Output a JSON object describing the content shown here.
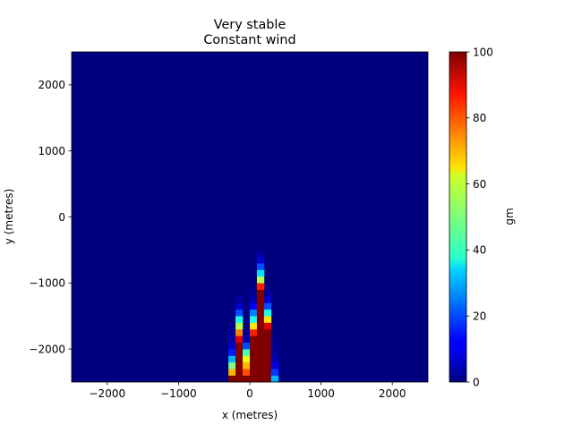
{
  "chart_data": {
    "type": "heatmap",
    "title": "Very stable",
    "subtitle": "Constant wind",
    "xlabel": "x (metres)",
    "ylabel": "y (metres)",
    "xlim": [
      -2500,
      2500
    ],
    "ylim": [
      -2500,
      2500
    ],
    "grid": false,
    "x_ticks": [
      -2000,
      -1000,
      0,
      1000,
      2000
    ],
    "x_tick_labels": [
      "−2000",
      "−1000",
      "0",
      "1000",
      "2000"
    ],
    "y_ticks": [
      2000,
      1000,
      0,
      -1000,
      -2000
    ],
    "y_tick_labels": [
      "2000",
      "1000",
      "0",
      "−1000",
      "−2000"
    ],
    "cell_size": 100,
    "background_value": 0,
    "colorbar": {
      "label": "gm",
      "min": 0,
      "max": 100,
      "ticks": [
        0,
        20,
        40,
        60,
        80,
        100
      ],
      "tick_labels": [
        "0",
        "20",
        "40",
        "60",
        "80",
        "100"
      ],
      "colormap": "jet"
    },
    "columns": [
      {
        "x_center": -250,
        "cells": [
          [
            -2450,
            100
          ],
          [
            -2350,
            70
          ],
          [
            -2250,
            50
          ],
          [
            -2150,
            30
          ],
          [
            -2050,
            15
          ],
          [
            -1950,
            8
          ],
          [
            -1850,
            4
          ],
          [
            -1750,
            2
          ],
          [
            -1650,
            1
          ]
        ]
      },
      {
        "x_center": -150,
        "cells": [
          [
            -2450,
            100
          ],
          [
            -2350,
            100
          ],
          [
            -2250,
            100
          ],
          [
            -2150,
            100
          ],
          [
            -2050,
            100
          ],
          [
            -1950,
            100
          ],
          [
            -1850,
            90
          ],
          [
            -1750,
            75
          ],
          [
            -1650,
            55
          ],
          [
            -1550,
            40
          ],
          [
            -1450,
            20
          ],
          [
            -1350,
            8
          ],
          [
            -1250,
            3
          ]
        ]
      },
      {
        "x_center": -50,
        "cells": [
          [
            -2450,
            100
          ],
          [
            -2350,
            80
          ],
          [
            -2250,
            70
          ],
          [
            -2150,
            60
          ],
          [
            -2050,
            45
          ],
          [
            -1950,
            20
          ],
          [
            -1850,
            5
          ],
          [
            -1750,
            2
          ]
        ]
      },
      {
        "x_center": 50,
        "cells": [
          [
            -2450,
            100
          ],
          [
            -2350,
            100
          ],
          [
            -2250,
            100
          ],
          [
            -2150,
            100
          ],
          [
            -2050,
            100
          ],
          [
            -1950,
            100
          ],
          [
            -1850,
            100
          ],
          [
            -1750,
            85
          ],
          [
            -1650,
            65
          ],
          [
            -1550,
            40
          ],
          [
            -1450,
            25
          ],
          [
            -1350,
            12
          ],
          [
            -1250,
            5
          ],
          [
            -1150,
            2
          ]
        ]
      },
      {
        "x_center": 150,
        "cells": [
          [
            -2450,
            100
          ],
          [
            -2350,
            100
          ],
          [
            -2250,
            100
          ],
          [
            -2150,
            100
          ],
          [
            -2050,
            100
          ],
          [
            -1950,
            100
          ],
          [
            -1850,
            100
          ],
          [
            -1750,
            100
          ],
          [
            -1650,
            100
          ],
          [
            -1550,
            100
          ],
          [
            -1450,
            100
          ],
          [
            -1350,
            100
          ],
          [
            -1250,
            100
          ],
          [
            -1150,
            100
          ],
          [
            -1050,
            85
          ],
          [
            -950,
            55
          ],
          [
            -850,
            35
          ],
          [
            -750,
            20
          ],
          [
            -650,
            8
          ],
          [
            -550,
            3
          ]
        ]
      },
      {
        "x_center": 250,
        "cells": [
          [
            -2450,
            100
          ],
          [
            -2350,
            100
          ],
          [
            -2250,
            100
          ],
          [
            -2150,
            100
          ],
          [
            -2050,
            100
          ],
          [
            -1950,
            100
          ],
          [
            -1850,
            100
          ],
          [
            -1750,
            100
          ],
          [
            -1650,
            90
          ],
          [
            -1550,
            65
          ],
          [
            -1450,
            40
          ],
          [
            -1350,
            20
          ],
          [
            -1250,
            8
          ],
          [
            -1150,
            3
          ]
        ]
      },
      {
        "x_center": 350,
        "cells": [
          [
            -2450,
            30
          ],
          [
            -2350,
            18
          ],
          [
            -2250,
            10
          ],
          [
            -2150,
            5
          ],
          [
            -2050,
            3
          ],
          [
            -1950,
            2
          ],
          [
            -1850,
            1
          ]
        ]
      }
    ]
  }
}
